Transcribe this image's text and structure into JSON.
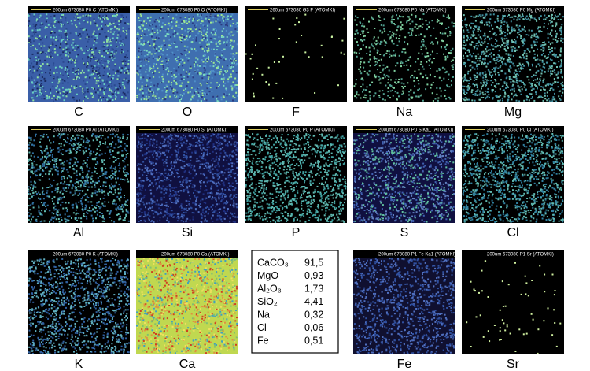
{
  "maps": [
    {
      "header": "200um 673080 P0 C (ATOMKI)",
      "label": "C"
    },
    {
      "header": "200um 673080 P0 O (ATOMKI)",
      "label": "O"
    },
    {
      "header": "260um 673080 G3 F (ATOMKI)",
      "label": "F"
    },
    {
      "header": "200um 673080 P0 Na (ATOMKI)",
      "label": "Na"
    },
    {
      "header": "200um 673080 P0 Mg (ATOMKI)",
      "label": "Mg"
    },
    {
      "header": "200um 673080 P0 Al (ATOMKI)",
      "label": "Al"
    },
    {
      "header": "200um 673080 P0 Si (ATOMKI)",
      "label": "Si"
    },
    {
      "header": "200um 673080 P0 P (ATOMKI)",
      "label": "P"
    },
    {
      "header": "200um 673080 P0 S Ka1 (ATOMKI)",
      "label": "S"
    },
    {
      "header": "200um 673080 P0 Cl (ATOMKI)",
      "label": "Cl"
    },
    {
      "header": "200um 673080 P0 K (ATOMKI)",
      "label": "K"
    },
    {
      "header": "200um 673080 P0 Ca (ATOMKI)",
      "label": "Ca"
    },
    {
      "header": "200um 673080 P1 Fe Ka1 (ATOMKI)",
      "label": "Fe"
    },
    {
      "header": "200um 673080 P1 Sr (ATOMKI)",
      "label": "Sr"
    }
  ],
  "table": {
    "rows": [
      [
        "CaCO₃",
        "91,5"
      ],
      [
        "MgO",
        "0,93"
      ],
      [
        "Al₂O₃",
        "1,73"
      ],
      [
        "SiO₂",
        "4,41"
      ],
      [
        "Na",
        "0,32"
      ],
      [
        "Cl",
        "0,06"
      ],
      [
        "Fe",
        "0,51"
      ]
    ]
  }
}
